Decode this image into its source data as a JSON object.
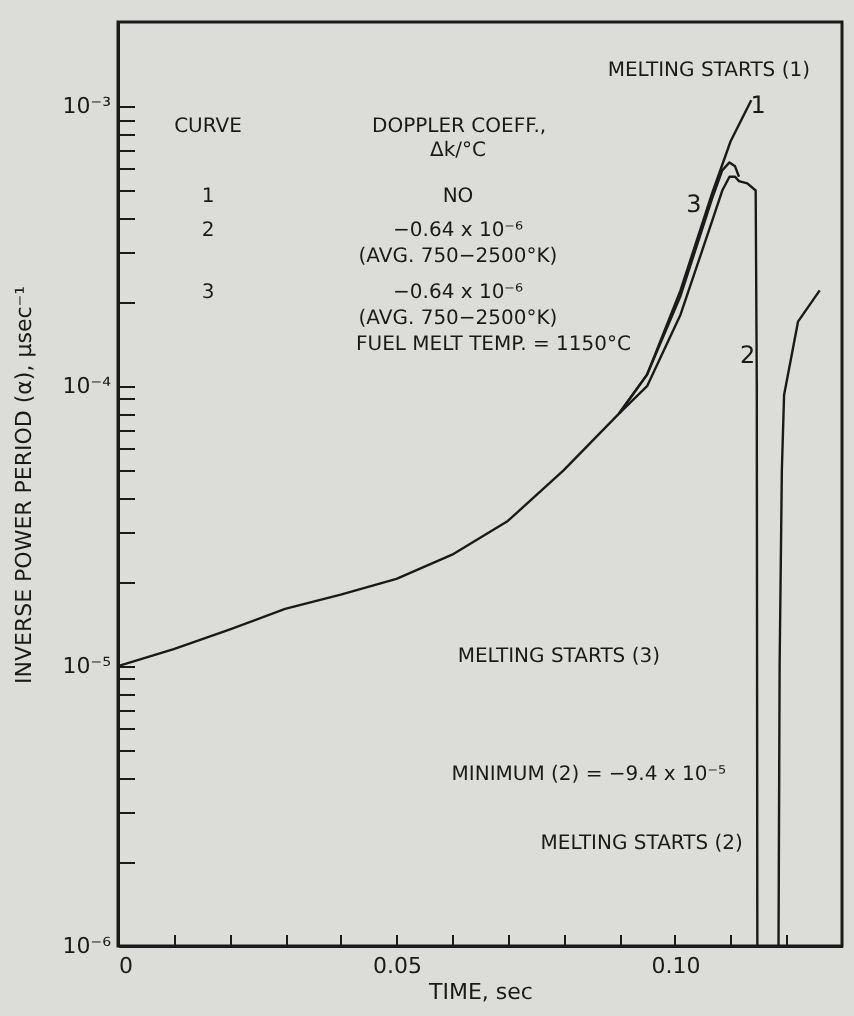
{
  "chart_data": {
    "type": "line",
    "xlabel": "TIME, sec",
    "ylabel": "INVERSE POWER PERIOD (α), μsec⁻¹",
    "log": "y",
    "grid": false,
    "marker": "none",
    "line_style": "solid",
    "xlim": [
      0,
      0.13
    ],
    "xticks": [
      0,
      {
        "value": 0.01,
        "label": null
      },
      {
        "value": 0.02,
        "label": null
      },
      {
        "value": 0.03,
        "label": null
      },
      {
        "value": 0.04,
        "label": null
      },
      0.05,
      {
        "value": 0.06,
        "label": null
      },
      {
        "value": 0.07,
        "label": null
      },
      {
        "value": 0.08,
        "label": null
      },
      {
        "value": 0.09,
        "label": null
      },
      {
        "value": 0.1,
        "label": "0.10"
      },
      {
        "value": 0.11,
        "label": null
      },
      {
        "value": 0.12,
        "label": null
      }
    ],
    "ylim": [
      1e-06,
      0.002
    ],
    "yticks": [
      {
        "value": 1e-06,
        "label": "10⁻⁶"
      },
      {
        "value": 2e-06,
        "label": null
      },
      {
        "value": 3e-06,
        "label": null
      },
      {
        "value": 4e-06,
        "label": null
      },
      {
        "value": 5e-06,
        "label": null
      },
      {
        "value": 6e-06,
        "label": null
      },
      {
        "value": 7e-06,
        "label": null
      },
      {
        "value": 8e-06,
        "label": null
      },
      {
        "value": 9e-06,
        "label": null
      },
      {
        "value": 1e-05,
        "label": "10⁻⁵"
      },
      {
        "value": 2e-05,
        "label": null
      },
      {
        "value": 3e-05,
        "label": null
      },
      {
        "value": 4e-05,
        "label": null
      },
      {
        "value": 5e-05,
        "label": null
      },
      {
        "value": 6e-05,
        "label": null
      },
      {
        "value": 7e-05,
        "label": null
      },
      {
        "value": 8e-05,
        "label": null
      },
      {
        "value": 9e-05,
        "label": null
      },
      {
        "value": 0.0001,
        "label": "10⁻⁴"
      },
      {
        "value": 0.0002,
        "label": null
      },
      {
        "value": 0.0003,
        "label": null
      },
      {
        "value": 0.0004,
        "label": null
      },
      {
        "value": 0.0005,
        "label": null
      },
      {
        "value": 0.0006,
        "label": null
      },
      {
        "value": 0.0007,
        "label": null
      },
      {
        "value": 0.0008,
        "label": null
      },
      {
        "value": 0.0009,
        "label": null
      },
      {
        "value": 0.001,
        "label": "10⁻³"
      }
    ],
    "series": [
      {
        "name": "1",
        "color": "#1a1a1a",
        "x": [
          0,
          0.01,
          0.02,
          0.03,
          0.04,
          0.05,
          0.06,
          0.07,
          0.08,
          0.09,
          0.095,
          0.101,
          0.1067,
          0.11,
          0.1137
        ],
        "values": [
          1e-05,
          1.15e-05,
          1.35e-05,
          1.6e-05,
          1.8e-05,
          2.05e-05,
          2.5e-05,
          3.3e-05,
          5e-05,
          8e-05,
          0.00011,
          0.00022,
          0.00049,
          0.00075,
          0.00105
        ]
      },
      {
        "name": "2",
        "color": "#1a1a1a",
        "x": [
          0.09,
          0.095,
          0.101,
          0.1067,
          0.1085,
          0.1098,
          0.1108,
          0.1115,
          0.113,
          0.1145,
          0.1147,
          0.1148,
          0.1167,
          0.1186,
          0.1188,
          0.1192,
          0.1196,
          0.1221,
          0.126
        ],
        "values": [
          8e-05,
          0.0001,
          0.00018,
          0.00039,
          0.0005,
          0.00056,
          0.00056,
          0.00054,
          0.00053,
          0.0005,
          0.0001,
          1e-06,
          null,
          1e-06,
          1e-05,
          5e-05,
          9.3e-05,
          0.00017,
          0.00022
        ]
      },
      {
        "name": "3",
        "color": "#1a1a1a",
        "x": [
          0.09,
          0.095,
          0.101,
          0.1067,
          0.1085,
          0.1098,
          0.1108,
          0.1115
        ],
        "values": [
          8e-05,
          0.00011,
          0.00021,
          0.00047,
          0.00059,
          0.00063,
          0.00061,
          0.00056
        ]
      }
    ],
    "annotations": [
      "CURVE",
      "DOPPLER COEFF.,",
      "Δk/°C",
      "1",
      "NO",
      "2",
      "−0.64 x 10⁻⁶",
      "(AVG. 750−2500°K)",
      "3",
      "−0.64 x 10⁻⁶",
      "(AVG. 750−2500°K)",
      "FUEL MELT TEMP. = 1150°C",
      "MELTING STARTS (1)",
      "MELTING STARTS (3)",
      "MINIMUM (2) = −9.4 x 10⁻⁵",
      {
        "text": "MELTING STARTS (2)",
        "x": 0.1158,
        "y": 1.5e-06
      }
    ]
  }
}
